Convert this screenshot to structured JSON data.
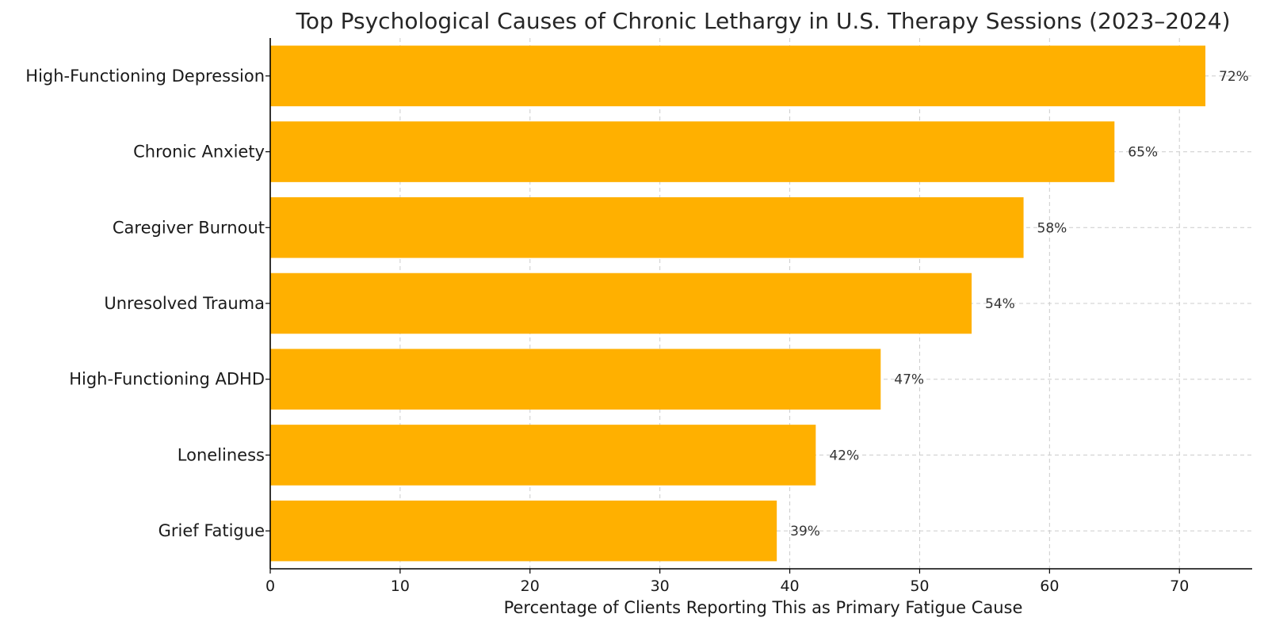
{
  "chart_data": {
    "type": "bar",
    "orientation": "horizontal",
    "title": "Top Psychological Causes of Chronic Lethargy in U.S. Therapy Sessions (2023–2024)",
    "xlabel": "Percentage of Clients Reporting This as Primary Fatigue Cause",
    "ylabel": "",
    "categories": [
      "High-Functioning Depression",
      "Chronic Anxiety",
      "Caregiver Burnout",
      "Unresolved Trauma",
      "High-Functioning ADHD",
      "Loneliness",
      "Grief Fatigue"
    ],
    "values": [
      72,
      65,
      58,
      54,
      47,
      42,
      39
    ],
    "data_labels": [
      "72%",
      "65%",
      "58%",
      "54%",
      "47%",
      "42%",
      "39%"
    ],
    "xlim": [
      0,
      75.6
    ],
    "xticks": [
      0,
      10,
      20,
      30,
      40,
      50,
      60,
      70
    ],
    "grid": true,
    "bar_color": "#ffb000"
  }
}
